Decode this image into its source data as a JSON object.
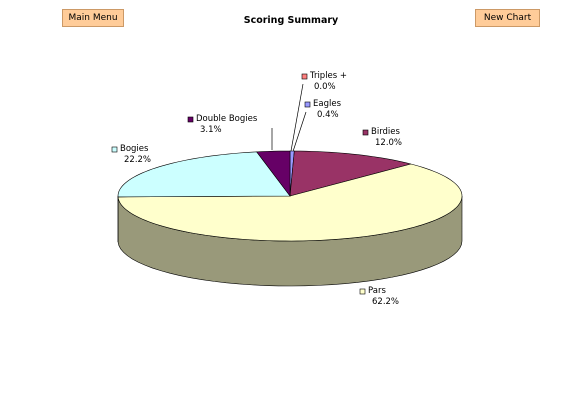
{
  "ui": {
    "buttons": [
      "Main Menu",
      "New Chart"
    ]
  },
  "chart_data": {
    "type": "pie",
    "title": "Scoring Summary",
    "categories": [
      "Triples +",
      "Eagles",
      "Birdies",
      "Pars",
      "Bogies",
      "Double Bogies"
    ],
    "values": [
      0.0,
      0.4,
      12.0,
      62.2,
      22.2,
      3.1
    ],
    "value_labels": [
      "0.0%",
      "0.4%",
      "12.0%",
      "62.2%",
      "22.2%",
      "3.1%"
    ],
    "colors": [
      "#ff8080",
      "#9999ff",
      "#993366",
      "#ffffcc",
      "#ccffff",
      "#660066"
    ]
  }
}
